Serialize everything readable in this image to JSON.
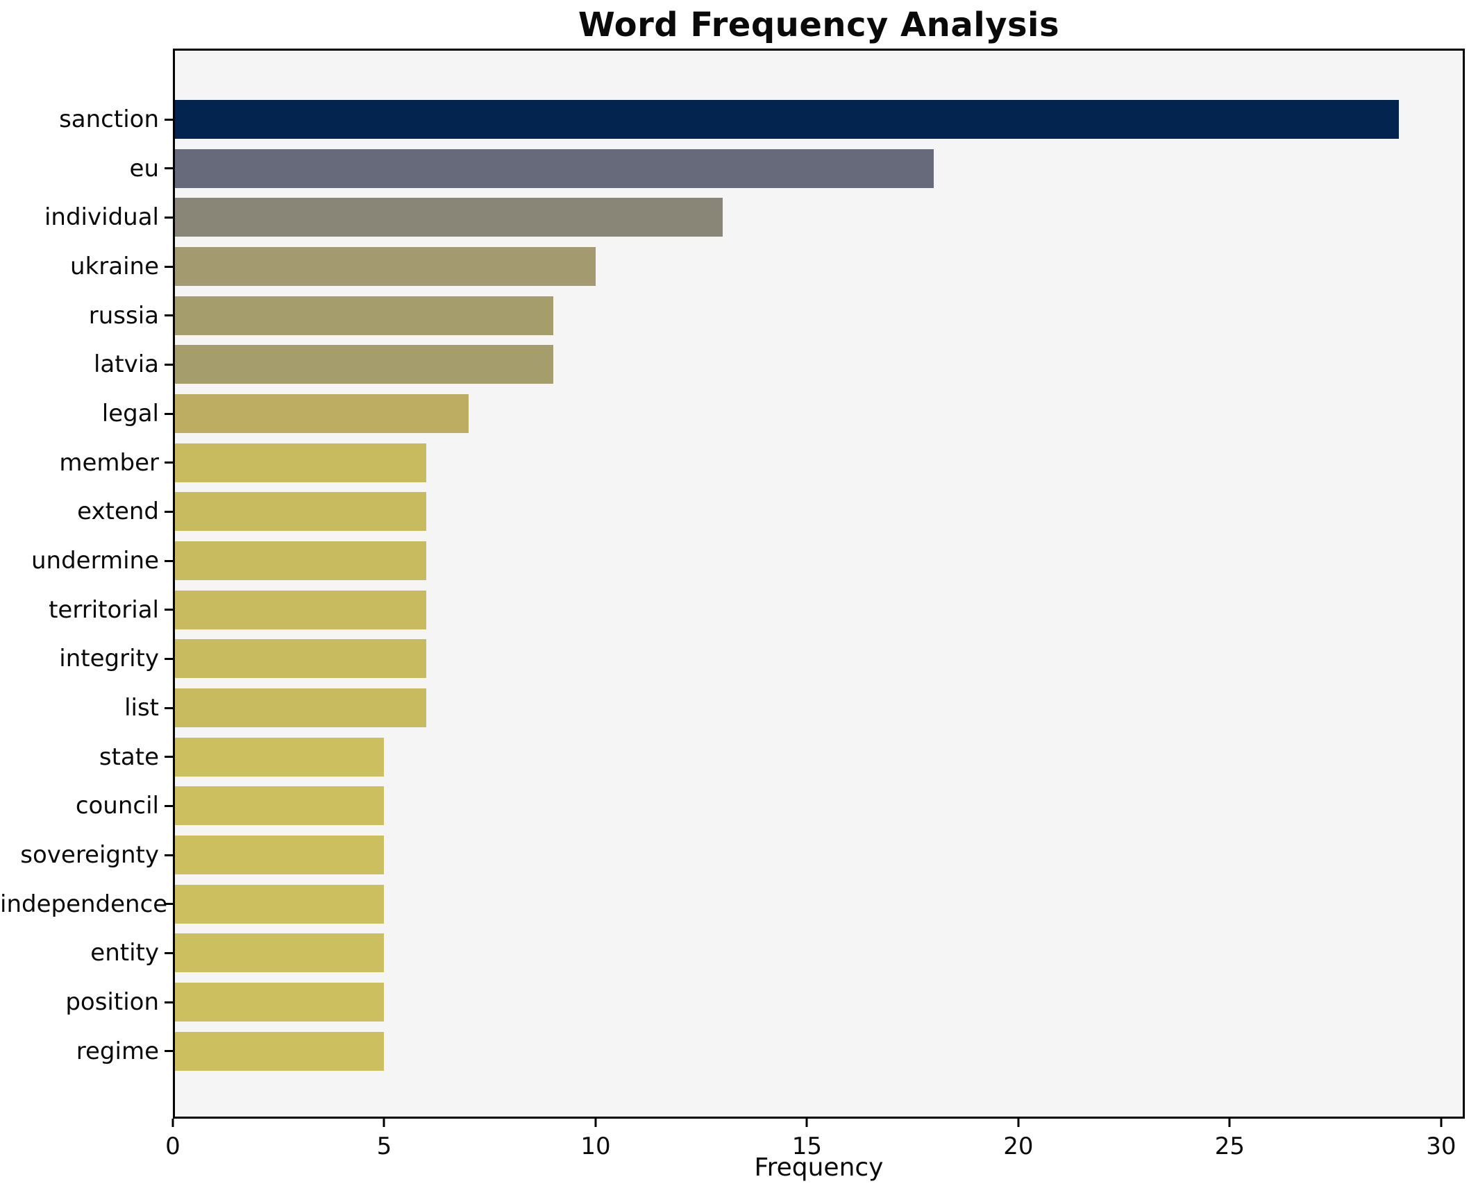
{
  "figure": {
    "background": "#ffffff",
    "plot_background": "#f5f5f6",
    "spine_color": "#000000",
    "text_color": "#0a0a0a"
  },
  "chart_data": {
    "type": "bar",
    "orientation": "horizontal",
    "title": "Word Frequency Analysis",
    "xlabel": "Frequency",
    "ylabel": "",
    "grid": false,
    "legend_position": "none",
    "xlim": [
      0,
      30.56
    ],
    "xticks": [
      0,
      5,
      10,
      15,
      20,
      25,
      30
    ],
    "categories": [
      "sanction",
      "eu",
      "individual",
      "ukraine",
      "russia",
      "latvia",
      "legal",
      "member",
      "extend",
      "undermine",
      "territorial",
      "integrity",
      "list",
      "state",
      "council",
      "sovereignty",
      "independence",
      "entity",
      "position",
      "regime"
    ],
    "values": [
      29,
      18,
      13,
      10,
      9,
      9,
      7,
      6,
      6,
      6,
      6,
      6,
      6,
      5,
      5,
      5,
      5,
      5,
      5,
      5
    ],
    "bar_colors": [
      "#042450",
      "#666a7b",
      "#8a8677",
      "#a39a6f",
      "#a69d6c",
      "#a69d6c",
      "#bcad62",
      "#c8ba5e",
      "#c8ba5e",
      "#c8ba5e",
      "#c8ba5e",
      "#c8ba5e",
      "#c8ba5e",
      "#ccbf5f",
      "#ccbf5f",
      "#ccbf5f",
      "#ccbf5f",
      "#ccbf5f",
      "#ccbf5f",
      "#ccbf5f"
    ]
  }
}
